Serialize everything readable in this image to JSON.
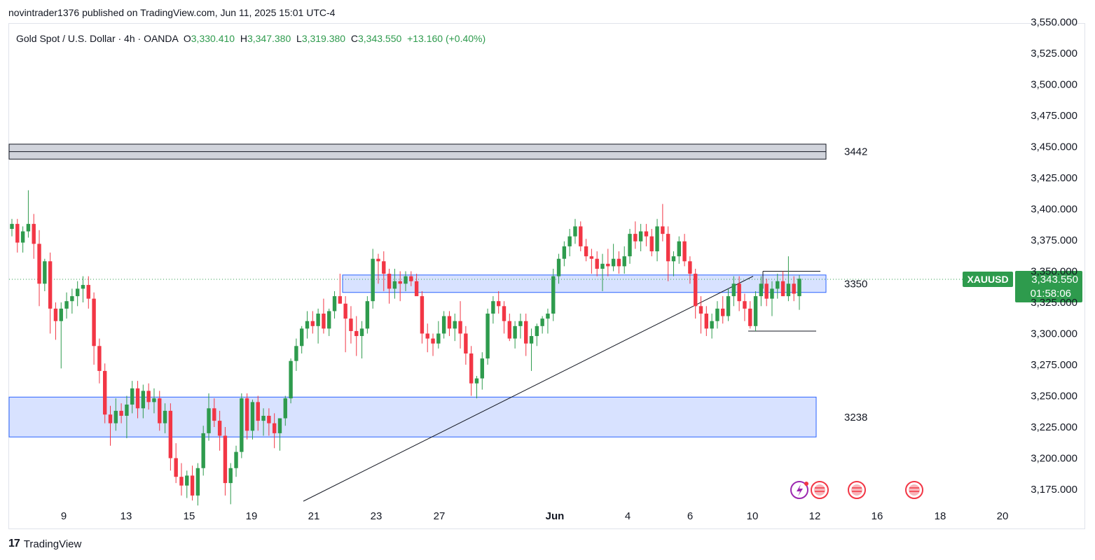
{
  "header": {
    "attribution": "novintrader1376 published on TradingView.com, Jun 11, 2025 15:01 UTC-4"
  },
  "footer": {
    "brand_mark": "17",
    "brand_name": "TradingView"
  },
  "colors": {
    "up": "#26a69a",
    "up_body": "#2e9b4d",
    "down": "#f23645",
    "zone_fill": "#d1ddff",
    "zone_border": "#2962ff",
    "gray_zone": "#d1d4dc",
    "badge": "#2e9b4d"
  },
  "chart_data": {
    "type": "candlestick",
    "symbol": "Gold Spot / U.S. Dollar · 4h · OANDA",
    "ohlc_label": {
      "o_label": "O",
      "o": "3,330.410",
      "h_label": "H",
      "h": "3,347.380",
      "l_label": "L",
      "l": "3,319.380",
      "c_label": "C",
      "c": "3,343.550",
      "change": "+13.160 (+0.40%)"
    },
    "y_ticks": [
      "3,175.000",
      "3,200.000",
      "3,225.000",
      "3,250.000",
      "3,275.000",
      "3,300.000",
      "3,325.000",
      "3,350.000",
      "3,375.000",
      "3,400.000",
      "3,425.000",
      "3,450.000",
      "3,475.000",
      "3,500.000",
      "3,525.000",
      "3,550.000"
    ],
    "ylim": [
      3165,
      3555
    ],
    "x_ticks": [
      "9",
      "13",
      "15",
      "19",
      "21",
      "23",
      "27",
      "Jun",
      "4",
      "6",
      "10",
      "12",
      "16",
      "18",
      "20"
    ],
    "last_price": {
      "symbol": "XAUUSD",
      "price": "3,343.550",
      "countdown": "01:58:06"
    },
    "zones": [
      {
        "label": "3442",
        "top": 3452,
        "bottom": 3440,
        "style": "gray"
      },
      {
        "label": "3350",
        "top": 3347,
        "bottom": 3333,
        "style": "blue"
      },
      {
        "label": "3238",
        "top": 3249,
        "bottom": 3217,
        "style": "blue"
      }
    ],
    "candles": [
      [
        3384,
        3392,
        3378,
        3388
      ],
      [
        3388,
        3392,
        3365,
        3373
      ],
      [
        3373,
        3386,
        3365,
        3382
      ],
      [
        3382,
        3415,
        3377,
        3388
      ],
      [
        3388,
        3396,
        3360,
        3372
      ],
      [
        3372,
        3383,
        3322,
        3340
      ],
      [
        3340,
        3360,
        3334,
        3358
      ],
      [
        3358,
        3365,
        3300,
        3320
      ],
      [
        3320,
        3325,
        3295,
        3310
      ],
      [
        3310,
        3325,
        3272,
        3320
      ],
      [
        3320,
        3333,
        3312,
        3326
      ],
      [
        3326,
        3336,
        3316,
        3330
      ],
      [
        3330,
        3342,
        3322,
        3336
      ],
      [
        3336,
        3346,
        3325,
        3339
      ],
      [
        3339,
        3346,
        3320,
        3328
      ],
      [
        3328,
        3333,
        3275,
        3290
      ],
      [
        3290,
        3296,
        3260,
        3270
      ],
      [
        3270,
        3276,
        3228,
        3235
      ],
      [
        3235,
        3242,
        3210,
        3228
      ],
      [
        3228,
        3248,
        3222,
        3238
      ],
      [
        3238,
        3244,
        3228,
        3234
      ],
      [
        3234,
        3250,
        3216,
        3243
      ],
      [
        3243,
        3262,
        3236,
        3256
      ],
      [
        3256,
        3262,
        3232,
        3240
      ],
      [
        3240,
        3259,
        3232,
        3254
      ],
      [
        3254,
        3260,
        3239,
        3245
      ],
      [
        3245,
        3256,
        3236,
        3248
      ],
      [
        3248,
        3254,
        3222,
        3228
      ],
      [
        3228,
        3244,
        3220,
        3238
      ],
      [
        3238,
        3244,
        3190,
        3200
      ],
      [
        3200,
        3212,
        3180,
        3185
      ],
      [
        3185,
        3196,
        3170,
        3178
      ],
      [
        3178,
        3190,
        3168,
        3186
      ],
      [
        3186,
        3194,
        3166,
        3170
      ],
      [
        3170,
        3196,
        3162,
        3192
      ],
      [
        3192,
        3226,
        3186,
        3220
      ],
      [
        3220,
        3252,
        3214,
        3240
      ],
      [
        3240,
        3248,
        3225,
        3230
      ],
      [
        3230,
        3238,
        3206,
        3218
      ],
      [
        3218,
        3225,
        3170,
        3180
      ],
      [
        3180,
        3196,
        3163,
        3192
      ],
      [
        3192,
        3210,
        3185,
        3205
      ],
      [
        3205,
        3252,
        3200,
        3248
      ],
      [
        3248,
        3252,
        3215,
        3222
      ],
      [
        3222,
        3247,
        3215,
        3245
      ],
      [
        3245,
        3250,
        3222,
        3230
      ],
      [
        3230,
        3240,
        3218,
        3234
      ],
      [
        3234,
        3240,
        3218,
        3228
      ],
      [
        3228,
        3236,
        3208,
        3220
      ],
      [
        3220,
        3232,
        3206,
        3232
      ],
      [
        3232,
        3250,
        3226,
        3248
      ],
      [
        3248,
        3280,
        3244,
        3278
      ],
      [
        3278,
        3296,
        3270,
        3290
      ],
      [
        3290,
        3306,
        3284,
        3304
      ],
      [
        3304,
        3318,
        3296,
        3310
      ],
      [
        3310,
        3318,
        3300,
        3306
      ],
      [
        3306,
        3320,
        3292,
        3316
      ],
      [
        3316,
        3328,
        3300,
        3304
      ],
      [
        3304,
        3320,
        3298,
        3318
      ],
      [
        3318,
        3334,
        3312,
        3330
      ],
      [
        3330,
        3348,
        3324,
        3324
      ],
      [
        3324,
        3330,
        3285,
        3312
      ],
      [
        3312,
        3322,
        3292,
        3302
      ],
      [
        3302,
        3314,
        3282,
        3298
      ],
      [
        3298,
        3310,
        3280,
        3304
      ],
      [
        3304,
        3330,
        3300,
        3326
      ],
      [
        3326,
        3368,
        3320,
        3360
      ],
      [
        3360,
        3364,
        3340,
        3358
      ],
      [
        3358,
        3366,
        3334,
        3348
      ],
      [
        3348,
        3352,
        3324,
        3336
      ],
      [
        3336,
        3352,
        3328,
        3342
      ],
      [
        3342,
        3350,
        3326,
        3340
      ],
      [
        3340,
        3350,
        3334,
        3346
      ],
      [
        3346,
        3350,
        3338,
        3342
      ],
      [
        3342,
        3348,
        3332,
        3330
      ],
      [
        3330,
        3334,
        3292,
        3300
      ],
      [
        3300,
        3308,
        3285,
        3296
      ],
      [
        3296,
        3300,
        3282,
        3292
      ],
      [
        3292,
        3310,
        3288,
        3300
      ],
      [
        3300,
        3318,
        3296,
        3314
      ],
      [
        3314,
        3318,
        3298,
        3304
      ],
      [
        3304,
        3316,
        3294,
        3310
      ],
      [
        3310,
        3326,
        3288,
        3300
      ],
      [
        3300,
        3306,
        3275,
        3284
      ],
      [
        3284,
        3290,
        3250,
        3260
      ],
      [
        3260,
        3266,
        3248,
        3264
      ],
      [
        3264,
        3285,
        3255,
        3280
      ],
      [
        3280,
        3320,
        3275,
        3316
      ],
      [
        3316,
        3330,
        3308,
        3326
      ],
      [
        3326,
        3334,
        3316,
        3322
      ],
      [
        3322,
        3326,
        3300,
        3310
      ],
      [
        3310,
        3316,
        3294,
        3296
      ],
      [
        3296,
        3310,
        3288,
        3306
      ],
      [
        3306,
        3316,
        3296,
        3310
      ],
      [
        3310,
        3316,
        3282,
        3292
      ],
      [
        3292,
        3304,
        3270,
        3298
      ],
      [
        3298,
        3308,
        3290,
        3306
      ],
      [
        3306,
        3314,
        3300,
        3312
      ],
      [
        3312,
        3320,
        3300,
        3316
      ],
      [
        3316,
        3352,
        3310,
        3346
      ],
      [
        3346,
        3364,
        3340,
        3360
      ],
      [
        3360,
        3374,
        3354,
        3370
      ],
      [
        3370,
        3384,
        3362,
        3378
      ],
      [
        3378,
        3392,
        3372,
        3386
      ],
      [
        3386,
        3390,
        3366,
        3370
      ],
      [
        3370,
        3376,
        3358,
        3362
      ],
      [
        3362,
        3368,
        3348,
        3360
      ],
      [
        3360,
        3366,
        3346,
        3352
      ],
      [
        3352,
        3364,
        3334,
        3356
      ],
      [
        3356,
        3368,
        3346,
        3354
      ],
      [
        3354,
        3372,
        3350,
        3360
      ],
      [
        3360,
        3366,
        3348,
        3354
      ],
      [
        3354,
        3370,
        3348,
        3362
      ],
      [
        3362,
        3384,
        3356,
        3380
      ],
      [
        3380,
        3390,
        3368,
        3374
      ],
      [
        3374,
        3388,
        3366,
        3382
      ],
      [
        3382,
        3388,
        3370,
        3378
      ],
      [
        3378,
        3384,
        3362,
        3366
      ],
      [
        3366,
        3392,
        3358,
        3386
      ],
      [
        3386,
        3404,
        3374,
        3380
      ],
      [
        3380,
        3386,
        3342,
        3358
      ],
      [
        3358,
        3366,
        3346,
        3362
      ],
      [
        3362,
        3378,
        3356,
        3374
      ],
      [
        3374,
        3380,
        3354,
        3358
      ],
      [
        3358,
        3362,
        3340,
        3348
      ],
      [
        3348,
        3352,
        3312,
        3322
      ],
      [
        3322,
        3330,
        3300,
        3316
      ],
      [
        3316,
        3322,
        3298,
        3304
      ],
      [
        3304,
        3316,
        3296,
        3310
      ],
      [
        3310,
        3326,
        3304,
        3320
      ],
      [
        3320,
        3330,
        3308,
        3314
      ],
      [
        3314,
        3336,
        3310,
        3330
      ],
      [
        3330,
        3346,
        3322,
        3340
      ],
      [
        3340,
        3346,
        3318,
        3326
      ],
      [
        3326,
        3332,
        3310,
        3320
      ],
      [
        3320,
        3326,
        3304,
        3306
      ],
      [
        3306,
        3334,
        3302,
        3330
      ],
      [
        3330,
        3346,
        3322,
        3340
      ],
      [
        3340,
        3344,
        3322,
        3328
      ],
      [
        3328,
        3342,
        3314,
        3336
      ],
      [
        3336,
        3348,
        3328,
        3342
      ],
      [
        3342,
        3350,
        3330,
        3330
      ],
      [
        3330,
        3362,
        3326,
        3340
      ],
      [
        3340,
        3346,
        3326,
        3332
      ],
      [
        3330,
        3347,
        3319,
        3344
      ]
    ]
  }
}
